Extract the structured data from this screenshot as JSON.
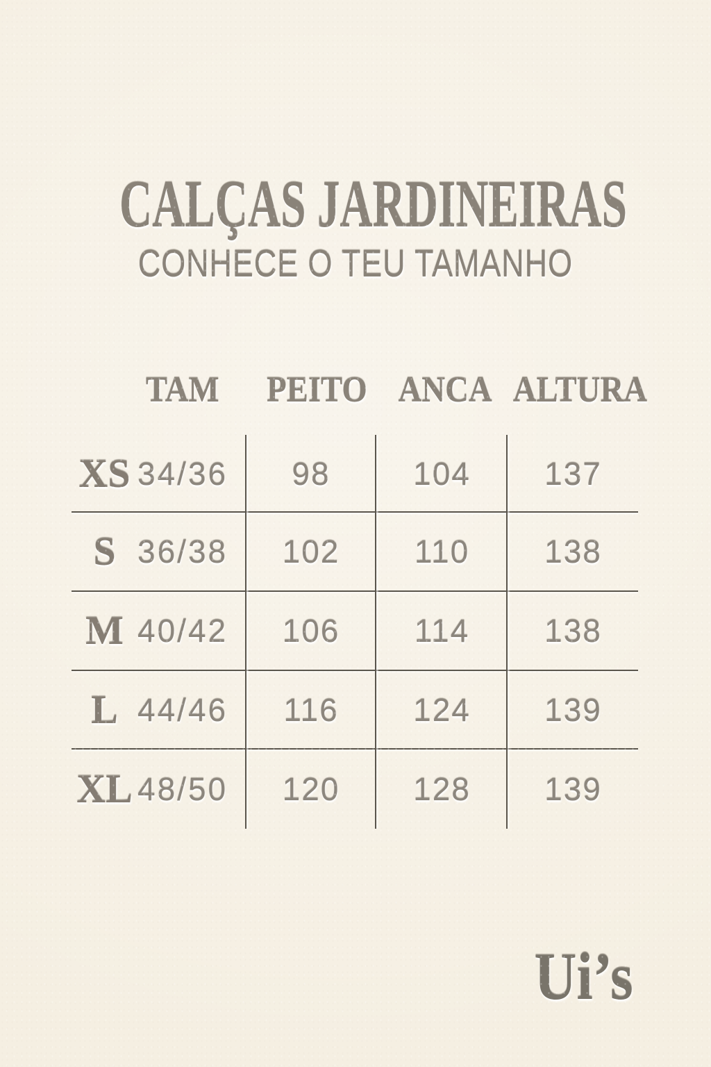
{
  "title": "CALÇAS JARDINEIRAS",
  "subtitle": "CONHECE O TEU TAMANHO",
  "logo_text": "Ui’s",
  "colors": {
    "background": "#f5efe2",
    "text": "#8a8379",
    "lines": "#5a554c",
    "logo": "#79746a"
  },
  "chart_data": {
    "type": "table",
    "title": "CALÇAS JARDINEIRAS",
    "subtitle": "CONHECE O TEU TAMANHO",
    "columns": [
      "TAM",
      "PEITO",
      "ANCA",
      "ALTURA"
    ],
    "rows": [
      {
        "size": "XS",
        "range": "34/36",
        "peito": "98",
        "anca": "104",
        "altura": "137"
      },
      {
        "size": "S",
        "range": "36/38",
        "peito": "102",
        "anca": "110",
        "altura": "138"
      },
      {
        "size": "M",
        "range": "40/42",
        "peito": "106",
        "anca": "114",
        "altura": "138"
      },
      {
        "size": "L",
        "range": "44/46",
        "peito": "116",
        "anca": "124",
        "altura": "139"
      },
      {
        "size": "XL",
        "range": "48/50",
        "peito": "120",
        "anca": "128",
        "altura": "139"
      }
    ]
  }
}
